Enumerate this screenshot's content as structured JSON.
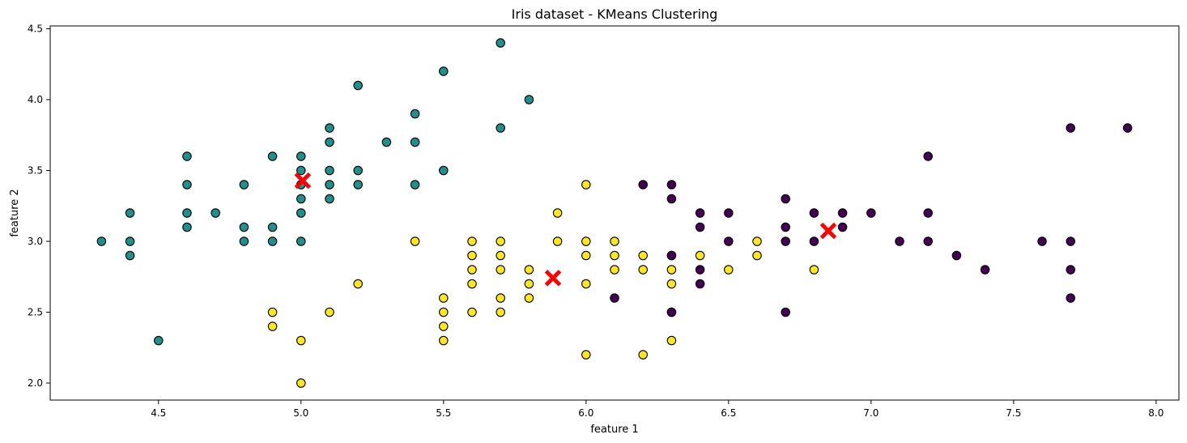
{
  "chart_data": {
    "type": "scatter",
    "title": "Iris dataset - KMeans Clustering",
    "xlabel": "feature 1",
    "ylabel": "feature 2",
    "xlim": [
      4.12,
      8.08
    ],
    "ylim": [
      1.88,
      4.52
    ],
    "x_ticks": [
      4.5,
      5.0,
      5.5,
      6.0,
      6.5,
      7.0,
      7.5,
      8.0
    ],
    "x_tick_labels": [
      "4.5",
      "5.0",
      "5.5",
      "6.0",
      "6.5",
      "7.0",
      "7.5",
      "8.0"
    ],
    "y_ticks": [
      2.0,
      2.5,
      3.0,
      3.5,
      4.0,
      4.5
    ],
    "y_tick_labels": [
      "2.0",
      "2.5",
      "3.0",
      "3.5",
      "4.0",
      "4.5"
    ],
    "grid": false,
    "series": [
      {
        "color": "#21908c",
        "points": [
          [
            4.3,
            3.0
          ],
          [
            4.4,
            3.2
          ],
          [
            4.4,
            3.0
          ],
          [
            4.4,
            2.9
          ],
          [
            4.5,
            2.3
          ],
          [
            4.6,
            3.6
          ],
          [
            4.6,
            3.4
          ],
          [
            4.6,
            3.2
          ],
          [
            4.6,
            3.1
          ],
          [
            4.7,
            3.2
          ],
          [
            4.8,
            3.4
          ],
          [
            4.8,
            3.1
          ],
          [
            4.8,
            3.0
          ],
          [
            4.9,
            3.6
          ],
          [
            4.9,
            3.1
          ],
          [
            4.9,
            3.0
          ],
          [
            5.0,
            3.6
          ],
          [
            5.0,
            3.5
          ],
          [
            5.0,
            3.4
          ],
          [
            5.0,
            3.3
          ],
          [
            5.0,
            3.2
          ],
          [
            5.0,
            3.0
          ],
          [
            5.1,
            3.8
          ],
          [
            5.1,
            3.7
          ],
          [
            5.1,
            3.5
          ],
          [
            5.1,
            3.4
          ],
          [
            5.1,
            3.3
          ],
          [
            5.2,
            4.1
          ],
          [
            5.2,
            3.5
          ],
          [
            5.2,
            3.4
          ],
          [
            5.3,
            3.7
          ],
          [
            5.4,
            3.9
          ],
          [
            5.4,
            3.7
          ],
          [
            5.4,
            3.4
          ],
          [
            5.5,
            4.2
          ],
          [
            5.5,
            3.5
          ],
          [
            5.7,
            4.4
          ],
          [
            5.7,
            3.8
          ],
          [
            5.8,
            4.0
          ]
        ]
      },
      {
        "color": "#fde725",
        "points": [
          [
            4.9,
            2.5
          ],
          [
            4.9,
            2.4
          ],
          [
            5.0,
            2.3
          ],
          [
            5.0,
            2.0
          ],
          [
            5.1,
            2.5
          ],
          [
            5.2,
            2.7
          ],
          [
            5.4,
            3.0
          ],
          [
            5.5,
            2.6
          ],
          [
            5.5,
            2.5
          ],
          [
            5.5,
            2.4
          ],
          [
            5.5,
            2.3
          ],
          [
            5.6,
            3.0
          ],
          [
            5.6,
            2.9
          ],
          [
            5.6,
            2.8
          ],
          [
            5.6,
            2.7
          ],
          [
            5.6,
            2.5
          ],
          [
            5.7,
            3.0
          ],
          [
            5.7,
            2.9
          ],
          [
            5.7,
            2.8
          ],
          [
            5.7,
            2.6
          ],
          [
            5.7,
            2.5
          ],
          [
            5.8,
            2.8
          ],
          [
            5.8,
            2.7
          ],
          [
            5.8,
            2.6
          ],
          [
            5.9,
            3.2
          ],
          [
            5.9,
            3.0
          ],
          [
            6.0,
            3.4
          ],
          [
            6.0,
            3.0
          ],
          [
            6.0,
            2.9
          ],
          [
            6.0,
            2.7
          ],
          [
            6.0,
            2.2
          ],
          [
            6.1,
            3.0
          ],
          [
            6.1,
            2.9
          ],
          [
            6.1,
            2.8
          ],
          [
            6.2,
            2.9
          ],
          [
            6.2,
            2.8
          ],
          [
            6.2,
            2.2
          ],
          [
            6.3,
            2.9
          ],
          [
            6.3,
            2.8
          ],
          [
            6.3,
            2.7
          ],
          [
            6.3,
            2.5
          ],
          [
            6.3,
            2.3
          ],
          [
            6.4,
            2.9
          ],
          [
            6.5,
            2.8
          ],
          [
            6.6,
            3.0
          ],
          [
            6.6,
            2.9
          ],
          [
            6.8,
            2.8
          ]
        ]
      },
      {
        "color": "#440154",
        "points": [
          [
            6.1,
            2.6
          ],
          [
            6.2,
            3.4
          ],
          [
            6.3,
            3.4
          ],
          [
            6.3,
            3.3
          ],
          [
            6.3,
            2.9
          ],
          [
            6.3,
            2.5
          ],
          [
            6.4,
            3.2
          ],
          [
            6.4,
            3.1
          ],
          [
            6.4,
            2.8
          ],
          [
            6.4,
            2.7
          ],
          [
            6.5,
            3.2
          ],
          [
            6.5,
            3.0
          ],
          [
            6.7,
            3.3
          ],
          [
            6.7,
            3.1
          ],
          [
            6.7,
            3.0
          ],
          [
            6.7,
            2.5
          ],
          [
            6.8,
            3.2
          ],
          [
            6.8,
            3.0
          ],
          [
            6.9,
            3.2
          ],
          [
            6.9,
            3.1
          ],
          [
            7.0,
            3.2
          ],
          [
            7.1,
            3.0
          ],
          [
            7.2,
            3.6
          ],
          [
            7.2,
            3.2
          ],
          [
            7.2,
            3.0
          ],
          [
            7.3,
            2.9
          ],
          [
            7.4,
            2.8
          ],
          [
            7.6,
            3.0
          ],
          [
            7.7,
            3.8
          ],
          [
            7.7,
            3.0
          ],
          [
            7.7,
            2.8
          ],
          [
            7.7,
            2.6
          ],
          [
            7.9,
            3.8
          ]
        ]
      }
    ],
    "centers": {
      "color": "#ff0000",
      "marker": "X",
      "points": [
        [
          5.006,
          3.428
        ],
        [
          5.884,
          2.741
        ],
        [
          6.85,
          3.074
        ]
      ]
    }
  }
}
